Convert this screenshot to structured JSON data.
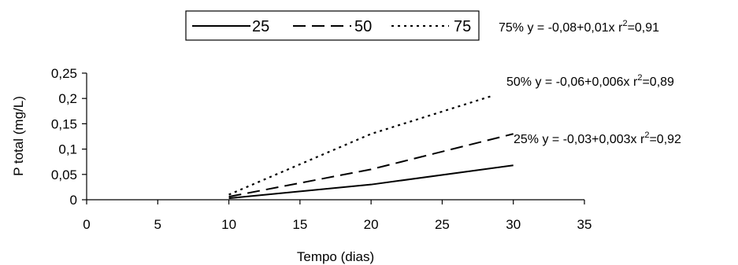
{
  "chart_data": {
    "type": "line",
    "title": "",
    "xlabel": "Tempo (dias)",
    "ylabel": "P total (mg/L)",
    "xlim": [
      0,
      35
    ],
    "ylim": [
      0,
      0.25
    ],
    "x_ticks": [
      0,
      5,
      10,
      15,
      20,
      25,
      30,
      35
    ],
    "x_tick_labels": [
      "0",
      "5",
      "10",
      "15",
      "20",
      "25",
      "30",
      "35"
    ],
    "y_ticks": [
      0,
      0.05,
      0.1,
      0.15,
      0.2,
      0.25
    ],
    "y_tick_labels": [
      "0",
      "0,05",
      "0,1",
      "0,15",
      "0,2",
      "0,25"
    ],
    "grid": false,
    "legend_position": "top",
    "series": [
      {
        "name": "25",
        "style": "solid",
        "x": [
          10,
          20,
          30
        ],
        "y": [
          0.003,
          0.03,
          0.068
        ]
      },
      {
        "name": "50",
        "style": "dashed",
        "x": [
          10,
          20,
          30
        ],
        "y": [
          0.006,
          0.06,
          0.13
        ]
      },
      {
        "name": "75",
        "style": "dotted",
        "x": [
          10,
          20,
          28.5
        ],
        "y": [
          0.01,
          0.13,
          0.205
        ]
      }
    ],
    "annotations": [
      {
        "prefix": "75% y = -0,08+0,01x r",
        "sup": "2",
        "suffix": "=0,91"
      },
      {
        "prefix": "50% y = -0,06+0,006x r",
        "sup": "2",
        "suffix": "=0,89"
      },
      {
        "prefix": "25% y = -0,03+0,003x r",
        "sup": "2",
        "suffix": "=0,92"
      }
    ]
  }
}
